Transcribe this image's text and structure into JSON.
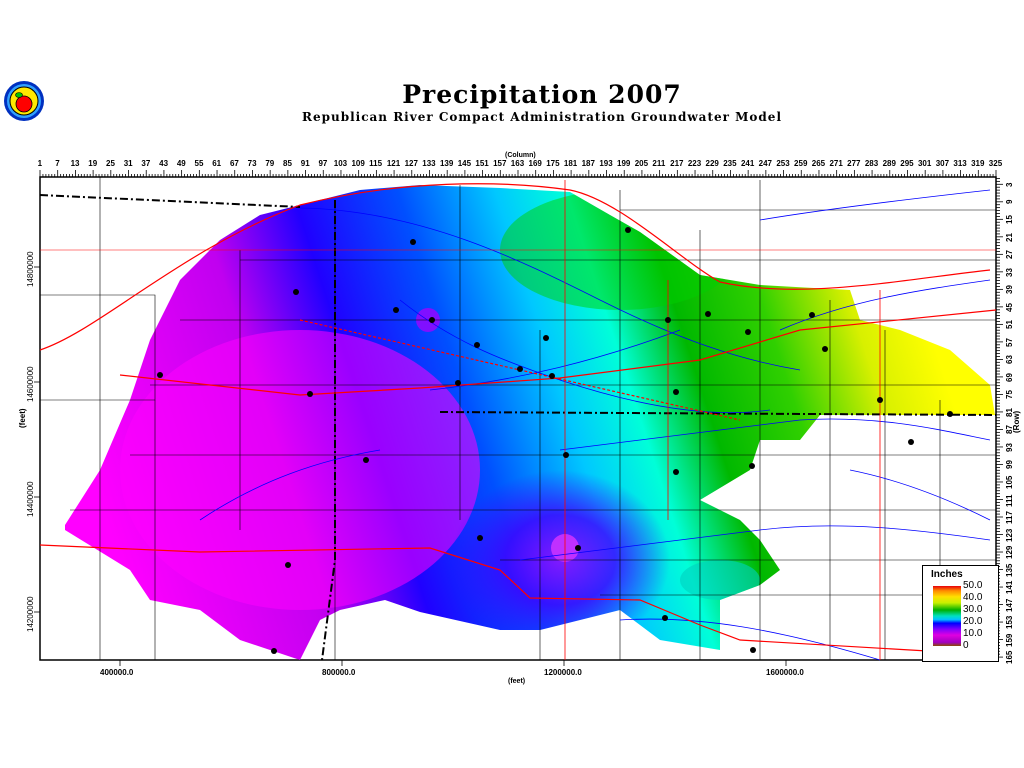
{
  "header": {
    "title": "Precipitation 2007",
    "subtitle": "Republican River Compact Administration Groundwater Model",
    "logo": "apple-seal-logo"
  },
  "chart_data": {
    "type": "heatmap",
    "title": "Precipitation 2007",
    "subtitle": "Republican River Compact Administration Groundwater Model",
    "top_axis_label": "(Column)",
    "right_axis_label": "(Row)",
    "xlabel": "(feet)",
    "ylabel": "(feet)",
    "column_ticks": [
      "1",
      "7",
      "13",
      "19",
      "25",
      "31",
      "37",
      "43",
      "49",
      "55",
      "61",
      "67",
      "73",
      "79",
      "85",
      "91",
      "97",
      "103",
      "109",
      "115",
      "121",
      "127",
      "133",
      "139",
      "145",
      "151",
      "157",
      "163",
      "169",
      "175",
      "181",
      "187",
      "193",
      "199",
      "205",
      "211",
      "217",
      "223",
      "229",
      "235",
      "241",
      "247",
      "253",
      "259",
      "265",
      "271",
      "277",
      "283",
      "289",
      "295",
      "301",
      "307",
      "313",
      "319",
      "325"
    ],
    "row_ticks": [
      "3",
      "9",
      "15",
      "21",
      "27",
      "33",
      "39",
      "45",
      "51",
      "57",
      "63",
      "69",
      "75",
      "81",
      "87",
      "93",
      "99",
      "105",
      "111",
      "117",
      "123",
      "129",
      "135",
      "141",
      "147",
      "153",
      "159",
      "165"
    ],
    "x_ticks": [
      "400000.0",
      "800000.0",
      "1200000.0",
      "1600000.0"
    ],
    "y_ticks": [
      "14800000",
      "14600000",
      "14400000",
      "14200000"
    ],
    "legend": {
      "title": "Inches",
      "labels": [
        "50.0",
        "40.0",
        "30.0",
        "20.0",
        "10.0",
        "0"
      ],
      "range": [
        0,
        50
      ],
      "placement": "bottom-right"
    },
    "colors": {
      "roads": "#ff0000",
      "rivers": "#0000ff",
      "boundaries": "#000000"
    }
  }
}
